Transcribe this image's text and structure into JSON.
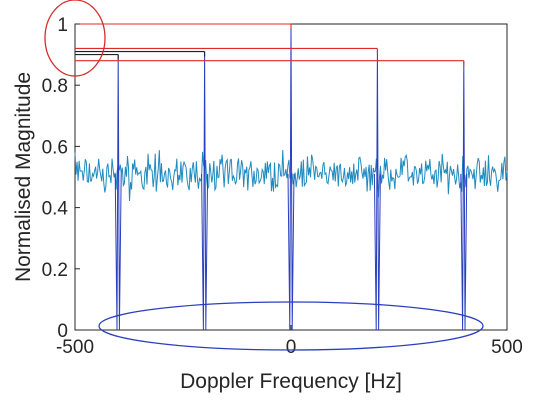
{
  "chart_data": {
    "type": "line",
    "title": "",
    "xlabel": "Doppler Frequency [Hz]",
    "ylabel": "Normalised Magnitude",
    "xlim": [
      -500,
      500
    ],
    "ylim": [
      0,
      1
    ],
    "xticks": [
      -500,
      0,
      500
    ],
    "xtick_labels": [
      "-500",
      "0",
      "500"
    ],
    "yticks": [
      0,
      0.2,
      0.4,
      0.6,
      0.8,
      1
    ],
    "ytick_labels": [
      "0",
      "0.2",
      "0.4",
      "0.6",
      "0.8",
      "1"
    ],
    "grid": false,
    "box": true,
    "colors": {
      "noise": "#1f8bbf",
      "peaks": "#2b3fbf",
      "level_markers": "#e02a2a",
      "annotation": "#d92b2b",
      "annotation_ellipse": "#2b3fbf",
      "axes": "#262626"
    },
    "noise_band": {
      "mean": 0.51,
      "min": 0.42,
      "max": 0.6
    },
    "peaks": [
      {
        "x": -400,
        "y": 0.9
      },
      {
        "x": -200,
        "y": 0.91
      },
      {
        "x": 0,
        "y": 1.0
      },
      {
        "x": 200,
        "y": 0.92
      },
      {
        "x": 400,
        "y": 0.88
      }
    ],
    "level_markers": [
      {
        "y": 1.0,
        "x_from": -500,
        "x_to": 0
      },
      {
        "y": 0.92,
        "x_from": -500,
        "x_to": 200
      },
      {
        "y": 0.91,
        "x_from": -500,
        "x_to": -200
      },
      {
        "y": 0.9,
        "x_from": -500,
        "x_to": -400
      },
      {
        "y": 0.88,
        "x_from": -500,
        "x_to": 400
      }
    ],
    "annotations": [
      {
        "shape": "ellipse",
        "target": "peak-levels",
        "color": "red"
      },
      {
        "shape": "ellipse",
        "target": "baseline-zero",
        "color": "blue"
      }
    ]
  }
}
